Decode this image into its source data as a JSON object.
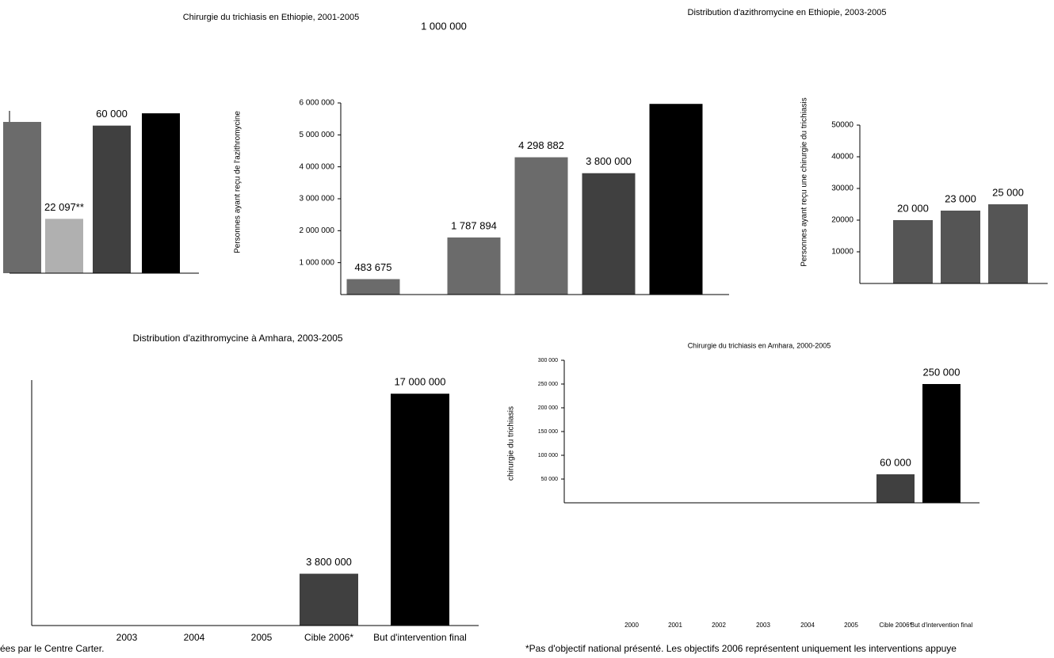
{
  "chart_data": [
    {
      "type": "bar",
      "title": "Chirurgie du trichiasis en Ethiopie, 2001-2005",
      "categories": [
        null,
        null,
        null,
        null
      ],
      "values": [
        61500,
        22097,
        60000,
        65000
      ],
      "value_labels": [
        null,
        "22 097**",
        "60 000",
        null
      ],
      "colors": [
        "#6b6b6b",
        "#b0b0b0",
        "#404040",
        "#000000"
      ],
      "ylim": [
        0,
        66000
      ]
    },
    {
      "type": "bar",
      "title": "Distribution d'azithromycine en Ethiopie, 2003-2005",
      "ylabel": "Personnes ayant reçu de l'azithromycine",
      "annotations": [
        "1 000 000"
      ],
      "categories": [
        null,
        null,
        null,
        null,
        null
      ],
      "values": [
        483675,
        1787894,
        4298882,
        3800000,
        5970000
      ],
      "value_labels": [
        "483 675",
        "1 787 894",
        "4 298 882",
        "3 800 000",
        null
      ],
      "colors": [
        "#6b6b6b",
        "#6b6b6b",
        "#6b6b6b",
        "#404040",
        "#000000"
      ],
      "ylim": [
        0,
        6000000
      ],
      "yticks": [
        {
          "value": 1000000,
          "label": "1 000 000"
        },
        {
          "value": 2000000,
          "label": "2 000 000"
        },
        {
          "value": 3000000,
          "label": "3 000 000"
        },
        {
          "value": 4000000,
          "label": "4 000 000"
        },
        {
          "value": 5000000,
          "label": "5 000 000"
        },
        {
          "value": 6000000,
          "label": "6 000 000"
        }
      ]
    },
    {
      "type": "bar",
      "ylabel": "Personnes ayant reçu une chirurgie du trichiasis",
      "categories": [
        null,
        null,
        null
      ],
      "values": [
        20000,
        23000,
        25000
      ],
      "value_labels": [
        "20 000",
        "23 000",
        "25 000"
      ],
      "colors": [
        "#555555",
        "#555555",
        "#555555"
      ],
      "ylim": [
        0,
        50000
      ],
      "yticks": [
        10000,
        20000,
        30000,
        40000,
        50000
      ]
    },
    {
      "type": "bar",
      "title": "Distribution d'azithromycine à Amhara, 2003-2005",
      "categories": [
        "2003",
        "2004",
        "2005",
        "Cible 2006*",
        "But d'intervention final"
      ],
      "values": [
        null,
        null,
        null,
        3800000,
        17000000
      ],
      "value_labels": [
        null,
        null,
        null,
        "3 800 000",
        "17 000 000"
      ],
      "colors": [
        "#555555",
        "#555555",
        "#555555",
        "#404040",
        "#000000"
      ],
      "ylim": [
        0,
        18000000
      ]
    },
    {
      "type": "bar",
      "title": "Chirurgie du trichiasis en Amhara, 2000-2005",
      "ylabel": "chirurgie du trichiasis",
      "categories": [
        "2000",
        "2001",
        "2002",
        "2003",
        "2004",
        "2005",
        "Cible 2006*",
        "But d'intervention final"
      ],
      "values": [
        null,
        null,
        null,
        null,
        null,
        null,
        60000,
        250000
      ],
      "value_labels": [
        null,
        null,
        null,
        null,
        null,
        null,
        "60 000",
        "250 000"
      ],
      "colors": [
        "#555555",
        "#555555",
        "#555555",
        "#555555",
        "#555555",
        "#555555",
        "#404040",
        "#000000"
      ],
      "ylim": [
        0,
        300000
      ],
      "yticks": [
        {
          "value": 50000,
          "label": "50 000"
        },
        {
          "value": 100000,
          "label": "100 000"
        },
        {
          "value": 150000,
          "label": "150 000"
        },
        {
          "value": 200000,
          "label": "200 000"
        },
        {
          "value": 250000,
          "label": "250 000"
        },
        {
          "value": 300000,
          "label": "300 000"
        }
      ]
    }
  ],
  "notes": [
    "ées par le Centre Carter.",
    "*Pas d'objectif national présenté. Les objectifs 2006 représentent uniquement les interventions appuye"
  ]
}
